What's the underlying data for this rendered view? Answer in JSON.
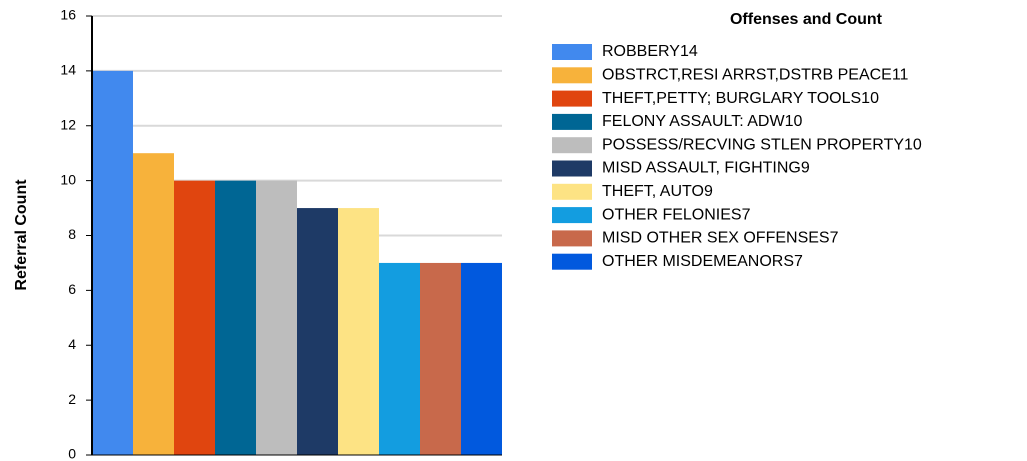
{
  "chart_data": {
    "type": "bar",
    "y_label": "Referral Count",
    "legend_title": "Offenses and Count",
    "series": [
      {
        "name": "ROBBERY14",
        "color": "#4189ee",
        "values": [
          14
        ]
      },
      {
        "name": "OBSTRCT,RESI ARRST,DSTRB PEACE11",
        "color": "#f7b23b",
        "values": [
          11
        ]
      },
      {
        "name": "THEFT,PETTY; BURGLARY TOOLS10",
        "color": "#e0450f",
        "values": [
          10
        ]
      },
      {
        "name": "FELONY ASSAULT: ADW10",
        "color": "#006694",
        "values": [
          10
        ]
      },
      {
        "name": "POSSESS/RECVING STLEN PROPERTY10",
        "color": "#bdbdbd",
        "values": [
          10
        ]
      },
      {
        "name": "MISD ASSAULT, FIGHTING9",
        "color": "#1e3a66",
        "values": [
          9
        ]
      },
      {
        "name": "THEFT, AUTO9",
        "color": "#fde384",
        "values": [
          9
        ]
      },
      {
        "name": "OTHER FELONIES7",
        "color": "#139de0",
        "values": [
          7
        ]
      },
      {
        "name": "MISD OTHER SEX OFFENSES7",
        "color": "#c8694b",
        "values": [
          7
        ]
      },
      {
        "name": "OTHER MISDEMEANORS7",
        "color": "#0159de",
        "values": [
          7
        ]
      }
    ],
    "ylim": [
      0,
      16
    ],
    "yticks": [
      0,
      2,
      4,
      6,
      8,
      10,
      12,
      14,
      16
    ],
    "grid": true
  }
}
